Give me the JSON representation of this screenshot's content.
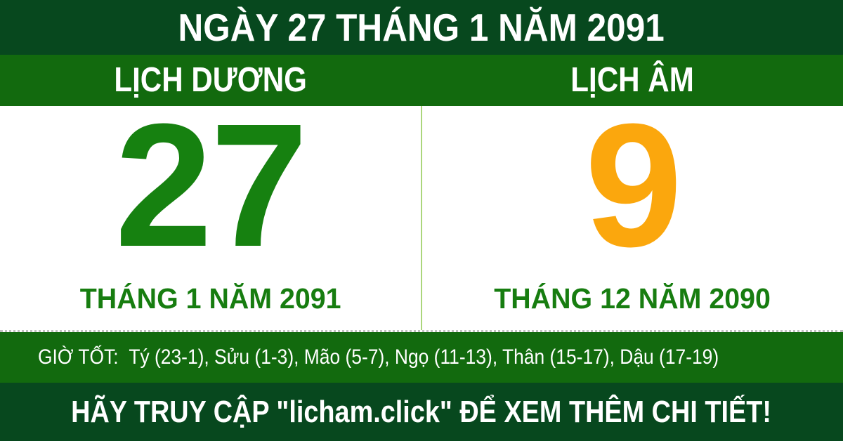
{
  "header": {
    "title": "NGÀY 27 THÁNG 1 NĂM 2091"
  },
  "calendar": {
    "solar": {
      "type_label": "LỊCH DƯƠNG",
      "day": "27",
      "month_year": "THÁNG 1 NĂM 2091"
    },
    "lunar": {
      "type_label": "LỊCH ÂM",
      "day": "9",
      "month_year": "THÁNG 12 NĂM 2090"
    }
  },
  "good_hours": {
    "label": "GIỜ TỐT:",
    "list": "Tý (23-1), Sửu (1-3), Mão (5-7), Ngọ (11-13), Thân (15-17), Dậu (17-19)",
    "hours": [
      {
        "name": "Tý",
        "range": "23-1"
      },
      {
        "name": "Sửu",
        "range": "1-3"
      },
      {
        "name": "Mão",
        "range": "5-7"
      },
      {
        "name": "Ngọ",
        "range": "11-13"
      },
      {
        "name": "Thân",
        "range": "15-17"
      },
      {
        "name": "Dậu",
        "range": "17-19"
      }
    ]
  },
  "footer": {
    "message": "HÃY TRUY CẬP \"licham.click\" ĐỂ XEM THÊM CHI TIẾT!",
    "site": "licham.click"
  },
  "colors": {
    "dark_green": "#07481e",
    "row_green": "#126a0e",
    "solar_day_green": "#168110",
    "month_green": "#177d10",
    "lunar_day_orange": "#fba70d",
    "divider_light_green": "#abd67c",
    "dotted_line_gray": "#bfbfbf",
    "panel_white": "#ffffff",
    "text_white": "#ffffff"
  }
}
